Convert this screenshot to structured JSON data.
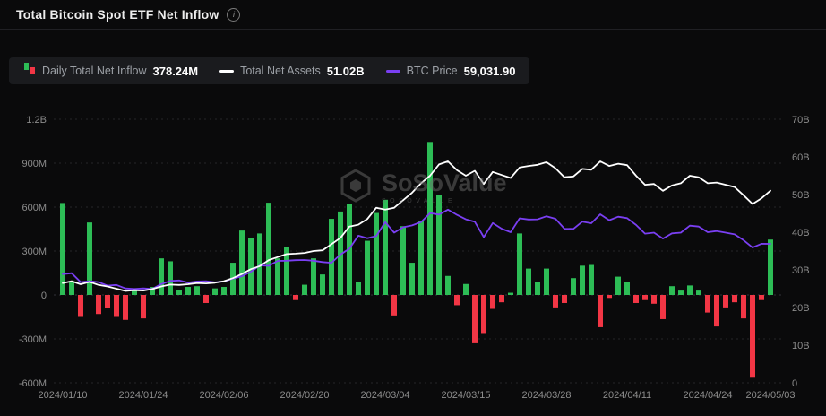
{
  "header": {
    "title": "Total Bitcoin Spot ETF Net Inflow",
    "info_icon": "i"
  },
  "legend": {
    "items": [
      {
        "id": "inflow",
        "label": "Daily Total Net Inflow",
        "value": "378.24M"
      },
      {
        "id": "assets",
        "label": "Total Net Assets",
        "value": "51.02B"
      },
      {
        "id": "btc",
        "label": "BTC Price",
        "value": "59,031.90"
      }
    ]
  },
  "watermark": {
    "name": "SoSoValue",
    "subtext": "SOSOVALUE"
  },
  "colors": {
    "background": "#0a0a0b",
    "panel": "#1a1b1e",
    "grid": "#26262a",
    "axis_text": "#8c8c8c",
    "bar_positive": "#2dbd56",
    "bar_negative": "#f23645",
    "net_assets_line": "#ffffff",
    "btc_line": "#7a3ff2"
  },
  "chart_data": {
    "type": "combo",
    "title": "Total Bitcoin Spot ETF Net Inflow",
    "x": [
      "2024/01/10",
      "2024/01/11",
      "2024/01/12",
      "2024/01/16",
      "2024/01/17",
      "2024/01/18",
      "2024/01/19",
      "2024/01/22",
      "2024/01/23",
      "2024/01/24",
      "2024/01/25",
      "2024/01/26",
      "2024/01/29",
      "2024/01/30",
      "2024/01/31",
      "2024/02/01",
      "2024/02/02",
      "2024/02/05",
      "2024/02/06",
      "2024/02/07",
      "2024/02/08",
      "2024/02/09",
      "2024/02/12",
      "2024/02/13",
      "2024/02/14",
      "2024/02/15",
      "2024/02/16",
      "2024/02/20",
      "2024/02/21",
      "2024/02/22",
      "2024/02/23",
      "2024/02/26",
      "2024/02/27",
      "2024/02/28",
      "2024/02/29",
      "2024/03/01",
      "2024/03/04",
      "2024/03/05",
      "2024/03/06",
      "2024/03/07",
      "2024/03/08",
      "2024/03/11",
      "2024/03/12",
      "2024/03/13",
      "2024/03/14",
      "2024/03/15",
      "2024/03/18",
      "2024/03/19",
      "2024/03/20",
      "2024/03/21",
      "2024/03/22",
      "2024/03/25",
      "2024/03/26",
      "2024/03/27",
      "2024/03/28",
      "2024/04/01",
      "2024/04/02",
      "2024/04/03",
      "2024/04/04",
      "2024/04/05",
      "2024/04/08",
      "2024/04/09",
      "2024/04/10",
      "2024/04/11",
      "2024/04/12",
      "2024/04/15",
      "2024/04/16",
      "2024/04/17",
      "2024/04/18",
      "2024/04/19",
      "2024/04/22",
      "2024/04/23",
      "2024/04/24",
      "2024/04/25",
      "2024/04/26",
      "2024/04/29",
      "2024/04/30",
      "2024/05/01",
      "2024/05/02",
      "2024/05/03"
    ],
    "series": [
      {
        "name": "Daily Total Net Inflow",
        "type": "bar",
        "unit": "M USD",
        "axis": "left",
        "values": [
          628,
          95,
          -150,
          495,
          -130,
          -90,
          -150,
          -170,
          40,
          -160,
          55,
          250,
          230,
          35,
          55,
          60,
          -55,
          45,
          55,
          220,
          440,
          390,
          420,
          630,
          250,
          330,
          -35,
          70,
          250,
          140,
          520,
          570,
          620,
          90,
          370,
          560,
          650,
          -140,
          470,
          220,
          505,
          1045,
          680,
          130,
          -70,
          75,
          -330,
          -260,
          -95,
          -50,
          15,
          420,
          180,
          90,
          180,
          -85,
          -55,
          115,
          200,
          205,
          -220,
          -20,
          125,
          90,
          -55,
          -35,
          -60,
          -165,
          60,
          30,
          65,
          30,
          -120,
          -215,
          -85,
          -50,
          -160,
          -565,
          -35,
          378.24
        ]
      },
      {
        "name": "Total Net Assets",
        "type": "line",
        "unit": "B USD",
        "axis": "right",
        "values": [
          26.5,
          27.0,
          26.2,
          26.8,
          26.0,
          25.6,
          25.0,
          24.4,
          24.6,
          24.5,
          24.9,
          25.6,
          26.1,
          26.0,
          26.2,
          26.5,
          26.4,
          26.6,
          27.0,
          27.8,
          28.9,
          30.2,
          31.0,
          32.6,
          33.4,
          34.2,
          34.3,
          34.5,
          35.0,
          35.2,
          36.8,
          38.5,
          41.5,
          42.0,
          43.5,
          46.5,
          46.0,
          46.5,
          48.5,
          50.5,
          53.0,
          55.0,
          58.0,
          58.8,
          56.5,
          55.0,
          56.3,
          52.8,
          56.0,
          55.2,
          54.4,
          57.2,
          57.6,
          57.9,
          58.6,
          57.0,
          54.6,
          54.8,
          56.8,
          56.6,
          58.8,
          57.6,
          58.2,
          57.8,
          55.0,
          52.6,
          52.8,
          51.0,
          52.4,
          53.0,
          55.0,
          54.6,
          53.0,
          53.2,
          52.6,
          52.0,
          49.8,
          47.5,
          49.0,
          51.02
        ]
      },
      {
        "name": "BTC Price",
        "type": "line",
        "unit": "USD",
        "axis": "right-hidden",
        "values": [
          46200,
          46600,
          42800,
          43200,
          42800,
          41300,
          41600,
          40100,
          39900,
          40100,
          39900,
          42000,
          43300,
          43500,
          42600,
          43100,
          43200,
          42700,
          43100,
          44300,
          45300,
          47200,
          49900,
          49700,
          51800,
          51900,
          52100,
          52200,
          51900,
          51300,
          51000,
          54500,
          57000,
          62500,
          61400,
          62400,
          68300,
          63800,
          66100,
          66900,
          68300,
          72100,
          71500,
          73600,
          71400,
          69500,
          68400,
          61900,
          67900,
          65500,
          64000,
          69900,
          69400,
          69500,
          70800,
          69700,
          65500,
          65400,
          68500,
          67800,
          71600,
          69100,
          70600,
          70000,
          67100,
          63400,
          63800,
          61300,
          63500,
          63800,
          66800,
          66400,
          64000,
          64500,
          63800,
          63100,
          60600,
          57500,
          59100,
          59031.9
        ]
      }
    ],
    "left_axis": {
      "ticks": [
        {
          "label": "1.2B",
          "value": 1200
        },
        {
          "label": "900M",
          "value": 900
        },
        {
          "label": "600M",
          "value": 600
        },
        {
          "label": "300M",
          "value": 300
        },
        {
          "label": "0",
          "value": 0
        },
        {
          "label": "-300M",
          "value": -300
        },
        {
          "label": "-600M",
          "value": -600
        }
      ],
      "range_M": [
        -600,
        1200
      ]
    },
    "right_axis": {
      "ticks": [
        {
          "label": "70B",
          "value": 70
        },
        {
          "label": "60B",
          "value": 60
        },
        {
          "label": "50B",
          "value": 50
        },
        {
          "label": "40B",
          "value": 40
        },
        {
          "label": "30B",
          "value": 30
        },
        {
          "label": "20B",
          "value": 20
        },
        {
          "label": "10B",
          "value": 10
        },
        {
          "label": "0",
          "value": 0
        }
      ],
      "range_B": [
        0,
        70
      ]
    },
    "x_ticks": [
      {
        "index": 0,
        "label": "2024/01/10"
      },
      {
        "index": 9,
        "label": "2024/01/24"
      },
      {
        "index": 18,
        "label": "2024/02/06"
      },
      {
        "index": 27,
        "label": "2024/02/20"
      },
      {
        "index": 36,
        "label": "2024/03/04"
      },
      {
        "index": 45,
        "label": "2024/03/15"
      },
      {
        "index": 54,
        "label": "2024/03/28"
      },
      {
        "index": 63,
        "label": "2024/04/11"
      },
      {
        "index": 72,
        "label": "2024/04/24"
      },
      {
        "index": 79,
        "label": "2024/05/03"
      }
    ],
    "layout": {
      "grid": "dashed-horizontal",
      "legend_position": "top-left",
      "btc_plot_divisor": 1600
    }
  }
}
